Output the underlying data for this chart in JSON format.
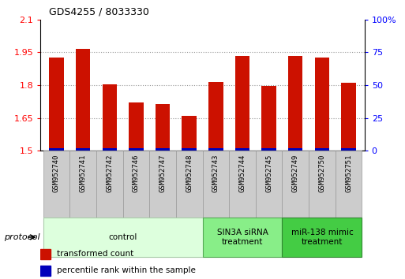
{
  "title": "GDS4255 / 8033330",
  "samples": [
    "GSM952740",
    "GSM952741",
    "GSM952742",
    "GSM952746",
    "GSM952747",
    "GSM952748",
    "GSM952743",
    "GSM952744",
    "GSM952745",
    "GSM952749",
    "GSM952750",
    "GSM952751"
  ],
  "transformed_counts": [
    1.925,
    1.965,
    1.805,
    1.72,
    1.715,
    1.66,
    1.815,
    1.935,
    1.795,
    1.935,
    1.925,
    1.81
  ],
  "percentile_ranks": [
    2,
    2,
    2,
    2,
    2,
    2,
    2,
    2,
    2,
    2,
    2,
    2
  ],
  "ylim_left": [
    1.5,
    2.1
  ],
  "ylim_right": [
    0,
    100
  ],
  "yticks_left": [
    1.5,
    1.65,
    1.8,
    1.95,
    2.1
  ],
  "yticks_right": [
    0,
    25,
    50,
    75,
    100
  ],
  "ytick_labels_right": [
    "0",
    "25",
    "50",
    "75",
    "100%"
  ],
  "bar_color_red": "#cc1100",
  "bar_color_blue": "#0000bb",
  "groups": [
    {
      "label": "control",
      "start": 0,
      "end": 5,
      "color": "#ddffdd",
      "edge_color": "#aaccaa"
    },
    {
      "label": "SIN3A siRNA\ntreatment",
      "start": 6,
      "end": 8,
      "color": "#88ee88",
      "edge_color": "#55aa55"
    },
    {
      "label": "miR-138 mimic\ntreatment",
      "start": 9,
      "end": 11,
      "color": "#44cc44",
      "edge_color": "#338833"
    }
  ],
  "protocol_label": "protocol",
  "legend_items": [
    {
      "color": "#cc1100",
      "label": "transformed count"
    },
    {
      "color": "#0000bb",
      "label": "percentile rank within the sample"
    }
  ],
  "bar_width": 0.55,
  "grid_linestyle": ":",
  "grid_color": "#333333",
  "grid_alpha": 0.5,
  "sample_box_color": "#cccccc",
  "sample_box_edge": "#999999"
}
